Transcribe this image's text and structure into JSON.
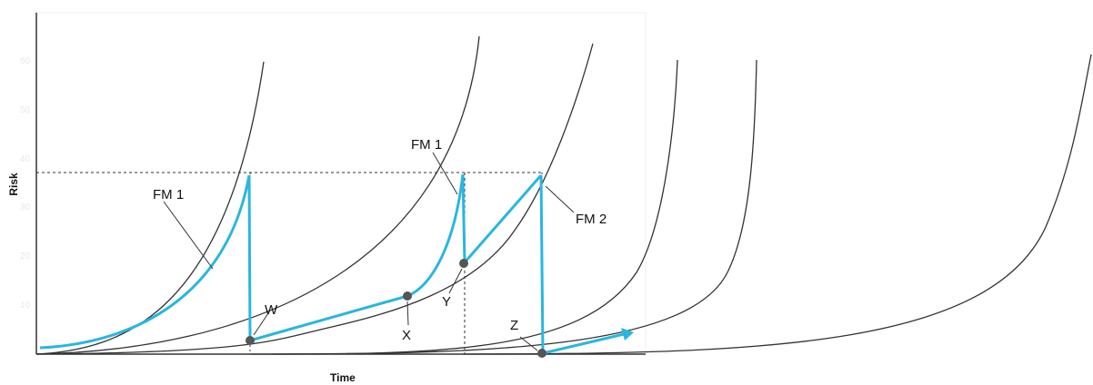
{
  "axes": {
    "y_title": "Risk",
    "x_title": "Time"
  },
  "labels": {
    "fm1_left": "FM 1",
    "fm1_mid": "FM 1",
    "fm2": "FM 2",
    "w": "W",
    "x": "X",
    "y": "Y",
    "z": "Z"
  },
  "colors": {
    "risk_path": "#29b6e0",
    "curves": "#333333",
    "points": "#555555",
    "guides": "#333333"
  }
}
